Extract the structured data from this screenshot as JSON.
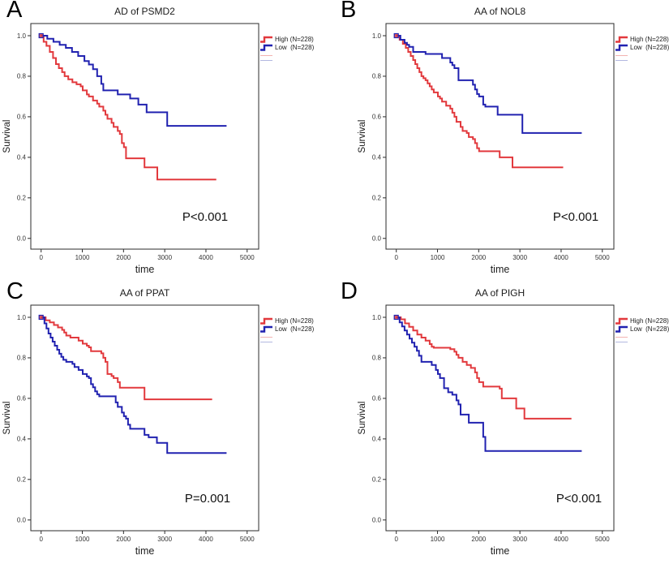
{
  "figure": {
    "background": "#ffffff",
    "axes": {
      "xlabel": "time",
      "ylabel": "Survival",
      "xticks": [
        0,
        1000,
        2000,
        3000,
        4000,
        5000
      ],
      "yticks": [
        "0.0",
        "0.2",
        "0.4",
        "0.6",
        "0.8",
        "1.0"
      ]
    },
    "colors": {
      "high": "#e2393d",
      "low": "#2122b0",
      "high_censored": "#f2b3b1",
      "low_censored": "#b3b8e0",
      "axis": "#2b2b2b"
    },
    "panels": [
      {
        "letter": "A",
        "title": "AD of PSMD2",
        "p_label": "P<0.001",
        "legend_high": "High (N=228)",
        "legend_low": "Low  (N=228)"
      },
      {
        "letter": "B",
        "title": "AA of NOL8",
        "p_label": "P<0.001",
        "legend_high": "High (N=228)",
        "legend_low": "Low  (N=228)"
      },
      {
        "letter": "C",
        "title": "AA of PPAT",
        "p_label": "P=0.001",
        "legend_high": "High (N=228)",
        "legend_low": "Low  (N=228)"
      },
      {
        "letter": "D",
        "title": "AA of PIGH",
        "p_label": "P<0.001",
        "legend_high": "High (N=228)",
        "legend_low": "Low  (N=228)"
      }
    ]
  },
  "chart_data": [
    {
      "type": "line",
      "subtype": "kaplan-meier-step",
      "title": "AD of PSMD2",
      "xlabel": "time",
      "ylabel": "Survival",
      "p_value": "P<0.001",
      "xlim": [
        -250,
        5280
      ],
      "ylim": [
        -0.053,
        1.06
      ],
      "xticks": [
        0,
        1000,
        2000,
        3000,
        4000,
        5000
      ],
      "yticks": [
        0,
        0.2,
        0.4,
        0.6,
        0.8,
        1.0
      ],
      "legend_position": "right-outside",
      "grid": false,
      "series": [
        {
          "name": "High (N=228)",
          "color": "#e2393d",
          "points": [
            [
              0,
              1.0
            ],
            [
              60,
              0.97
            ],
            [
              130,
              0.95
            ],
            [
              210,
              0.92
            ],
            [
              290,
              0.89
            ],
            [
              360,
              0.86
            ],
            [
              430,
              0.84
            ],
            [
              510,
              0.82
            ],
            [
              570,
              0.8
            ],
            [
              660,
              0.785
            ],
            [
              760,
              0.77
            ],
            [
              860,
              0.76
            ],
            [
              960,
              0.75
            ],
            [
              1010,
              0.73
            ],
            [
              1110,
              0.71
            ],
            [
              1160,
              0.7
            ],
            [
              1260,
              0.68
            ],
            [
              1360,
              0.665
            ],
            [
              1410,
              0.65
            ],
            [
              1510,
              0.63
            ],
            [
              1560,
              0.61
            ],
            [
              1610,
              0.59
            ],
            [
              1710,
              0.57
            ],
            [
              1760,
              0.55
            ],
            [
              1860,
              0.53
            ],
            [
              1910,
              0.515
            ],
            [
              1960,
              0.47
            ],
            [
              2010,
              0.45
            ],
            [
              2060,
              0.395
            ],
            [
              2510,
              0.35
            ],
            [
              2820,
              0.29
            ],
            [
              4250,
              0.29
            ]
          ]
        },
        {
          "name": "Low (N=228)",
          "color": "#2122b0",
          "points": [
            [
              0,
              1.0
            ],
            [
              150,
              0.985
            ],
            [
              300,
              0.97
            ],
            [
              450,
              0.955
            ],
            [
              600,
              0.94
            ],
            [
              750,
              0.92
            ],
            [
              900,
              0.9
            ],
            [
              1050,
              0.875
            ],
            [
              1160,
              0.858
            ],
            [
              1260,
              0.835
            ],
            [
              1360,
              0.8
            ],
            [
              1460,
              0.762
            ],
            [
              1510,
              0.73
            ],
            [
              1860,
              0.71
            ],
            [
              2160,
              0.69
            ],
            [
              2360,
              0.66
            ],
            [
              2560,
              0.622
            ],
            [
              3060,
              0.555
            ],
            [
              4500,
              0.555
            ]
          ]
        }
      ]
    },
    {
      "type": "line",
      "subtype": "kaplan-meier-step",
      "title": "AA of NOL8",
      "xlabel": "time",
      "ylabel": "Survival",
      "p_value": "P<0.001",
      "xlim": [
        -250,
        5280
      ],
      "ylim": [
        -0.053,
        1.06
      ],
      "xticks": [
        0,
        1000,
        2000,
        3000,
        4000,
        5000
      ],
      "yticks": [
        0,
        0.2,
        0.4,
        0.6,
        0.8,
        1.0
      ],
      "legend_position": "right-outside",
      "grid": false,
      "series": [
        {
          "name": "High (N=228)",
          "color": "#e2393d",
          "points": [
            [
              0,
              1.0
            ],
            [
              80,
              0.98
            ],
            [
              160,
              0.96
            ],
            [
              230,
              0.94
            ],
            [
              290,
              0.92
            ],
            [
              350,
              0.9
            ],
            [
              410,
              0.88
            ],
            [
              460,
              0.86
            ],
            [
              510,
              0.84
            ],
            [
              560,
              0.82
            ],
            [
              610,
              0.8
            ],
            [
              660,
              0.79
            ],
            [
              710,
              0.78
            ],
            [
              760,
              0.765
            ],
            [
              810,
              0.75
            ],
            [
              860,
              0.735
            ],
            [
              910,
              0.72
            ],
            [
              1010,
              0.7
            ],
            [
              1060,
              0.69
            ],
            [
              1110,
              0.675
            ],
            [
              1210,
              0.655
            ],
            [
              1310,
              0.64
            ],
            [
              1360,
              0.62
            ],
            [
              1410,
              0.6
            ],
            [
              1460,
              0.575
            ],
            [
              1560,
              0.55
            ],
            [
              1610,
              0.53
            ],
            [
              1710,
              0.52
            ],
            [
              1760,
              0.5
            ],
            [
              1860,
              0.49
            ],
            [
              1910,
              0.47
            ],
            [
              1960,
              0.445
            ],
            [
              2010,
              0.43
            ],
            [
              2510,
              0.4
            ],
            [
              2820,
              0.35
            ],
            [
              4050,
              0.35
            ]
          ]
        },
        {
          "name": "Low (N=228)",
          "color": "#2122b0",
          "points": [
            [
              0,
              1.0
            ],
            [
              100,
              0.98
            ],
            [
              200,
              0.965
            ],
            [
              260,
              0.955
            ],
            [
              310,
              0.945
            ],
            [
              410,
              0.92
            ],
            [
              710,
              0.91
            ],
            [
              1110,
              0.89
            ],
            [
              1310,
              0.868
            ],
            [
              1360,
              0.855
            ],
            [
              1410,
              0.84
            ],
            [
              1510,
              0.78
            ],
            [
              1860,
              0.758
            ],
            [
              1910,
              0.735
            ],
            [
              1960,
              0.712
            ],
            [
              2010,
              0.7
            ],
            [
              2110,
              0.66
            ],
            [
              2160,
              0.65
            ],
            [
              2460,
              0.61
            ],
            [
              3060,
              0.52
            ],
            [
              4500,
              0.52
            ]
          ]
        }
      ]
    },
    {
      "type": "line",
      "subtype": "kaplan-meier-step",
      "title": "AA of PPAT",
      "xlabel": "time",
      "ylabel": "Survival",
      "p_value": "P=0.001",
      "xlim": [
        -250,
        5280
      ],
      "ylim": [
        -0.053,
        1.06
      ],
      "xticks": [
        0,
        1000,
        2000,
        3000,
        4000,
        5000
      ],
      "yticks": [
        0,
        0.2,
        0.4,
        0.6,
        0.8,
        1.0
      ],
      "legend_position": "right-outside",
      "grid": false,
      "series": [
        {
          "name": "High (N=228)",
          "color": "#e2393d",
          "points": [
            [
              0,
              1.0
            ],
            [
              110,
              0.985
            ],
            [
              210,
              0.975
            ],
            [
              310,
              0.962
            ],
            [
              410,
              0.95
            ],
            [
              510,
              0.938
            ],
            [
              560,
              0.925
            ],
            [
              610,
              0.91
            ],
            [
              710,
              0.9
            ],
            [
              910,
              0.885
            ],
            [
              1010,
              0.87
            ],
            [
              1110,
              0.86
            ],
            [
              1160,
              0.852
            ],
            [
              1210,
              0.833
            ],
            [
              1460,
              0.822
            ],
            [
              1510,
              0.8
            ],
            [
              1560,
              0.78
            ],
            [
              1610,
              0.72
            ],
            [
              1710,
              0.71
            ],
            [
              1760,
              0.7
            ],
            [
              1860,
              0.68
            ],
            [
              1910,
              0.653
            ],
            [
              2510,
              0.595
            ],
            [
              4150,
              0.595
            ]
          ]
        },
        {
          "name": "Low (N=228)",
          "color": "#2122b0",
          "points": [
            [
              0,
              1.0
            ],
            [
              80,
              0.97
            ],
            [
              130,
              0.945
            ],
            [
              180,
              0.92
            ],
            [
              230,
              0.9
            ],
            [
              280,
              0.88
            ],
            [
              330,
              0.86
            ],
            [
              390,
              0.84
            ],
            [
              440,
              0.82
            ],
            [
              490,
              0.805
            ],
            [
              540,
              0.79
            ],
            [
              610,
              0.78
            ],
            [
              760,
              0.77
            ],
            [
              810,
              0.755
            ],
            [
              910,
              0.74
            ],
            [
              1010,
              0.72
            ],
            [
              1110,
              0.708
            ],
            [
              1160,
              0.7
            ],
            [
              1210,
              0.67
            ],
            [
              1260,
              0.655
            ],
            [
              1310,
              0.635
            ],
            [
              1360,
              0.62
            ],
            [
              1410,
              0.61
            ],
            [
              1810,
              0.58
            ],
            [
              1860,
              0.558
            ],
            [
              1960,
              0.53
            ],
            [
              2010,
              0.512
            ],
            [
              2060,
              0.5
            ],
            [
              2110,
              0.47
            ],
            [
              2160,
              0.45
            ],
            [
              2510,
              0.42
            ],
            [
              2610,
              0.408
            ],
            [
              2810,
              0.38
            ],
            [
              3060,
              0.33
            ],
            [
              4500,
              0.33
            ]
          ]
        }
      ]
    },
    {
      "type": "line",
      "subtype": "kaplan-meier-step",
      "title": "AA of PIGH",
      "xlabel": "time",
      "ylabel": "Survival",
      "p_value": "P<0.001",
      "xlim": [
        -250,
        5280
      ],
      "ylim": [
        -0.053,
        1.06
      ],
      "xticks": [
        0,
        1000,
        2000,
        3000,
        4000,
        5000
      ],
      "yticks": [
        0,
        0.2,
        0.4,
        0.6,
        0.8,
        1.0
      ],
      "legend_position": "right-outside",
      "grid": false,
      "series": [
        {
          "name": "High (N=228)",
          "color": "#e2393d",
          "points": [
            [
              0,
              1.0
            ],
            [
              110,
              0.99
            ],
            [
              210,
              0.97
            ],
            [
              310,
              0.953
            ],
            [
              410,
              0.935
            ],
            [
              510,
              0.915
            ],
            [
              610,
              0.9
            ],
            [
              710,
              0.885
            ],
            [
              810,
              0.868
            ],
            [
              860,
              0.855
            ],
            [
              910,
              0.85
            ],
            [
              1310,
              0.843
            ],
            [
              1410,
              0.83
            ],
            [
              1460,
              0.815
            ],
            [
              1510,
              0.8
            ],
            [
              1610,
              0.78
            ],
            [
              1710,
              0.765
            ],
            [
              1810,
              0.75
            ],
            [
              1910,
              0.728
            ],
            [
              1960,
              0.7
            ],
            [
              2010,
              0.68
            ],
            [
              2110,
              0.658
            ],
            [
              2510,
              0.648
            ],
            [
              2560,
              0.6
            ],
            [
              2910,
              0.55
            ],
            [
              3110,
              0.5
            ],
            [
              4250,
              0.5
            ]
          ]
        },
        {
          "name": "Low (N=228)",
          "color": "#2122b0",
          "points": [
            [
              0,
              1.0
            ],
            [
              80,
              0.975
            ],
            [
              140,
              0.955
            ],
            [
              200,
              0.935
            ],
            [
              260,
              0.915
            ],
            [
              320,
              0.895
            ],
            [
              380,
              0.875
            ],
            [
              440,
              0.855
            ],
            [
              500,
              0.835
            ],
            [
              550,
              0.81
            ],
            [
              610,
              0.78
            ],
            [
              860,
              0.765
            ],
            [
              960,
              0.74
            ],
            [
              1010,
              0.72
            ],
            [
              1060,
              0.7
            ],
            [
              1160,
              0.65
            ],
            [
              1260,
              0.63
            ],
            [
              1360,
              0.618
            ],
            [
              1460,
              0.59
            ],
            [
              1510,
              0.57
            ],
            [
              1560,
              0.52
            ],
            [
              1760,
              0.48
            ],
            [
              2110,
              0.41
            ],
            [
              2160,
              0.34
            ],
            [
              4500,
              0.34
            ]
          ]
        }
      ]
    }
  ]
}
